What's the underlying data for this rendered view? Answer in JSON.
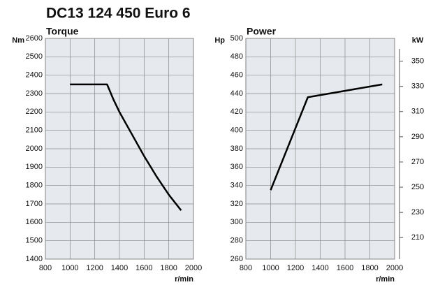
{
  "title": "DC13 124 450 Euro 6",
  "chart_data": [
    {
      "type": "line",
      "title": "Torque",
      "y_label": "Nm",
      "x_label": "r/min",
      "x": [
        1000,
        1300,
        1350,
        1400,
        1500,
        1600,
        1700,
        1800,
        1900
      ],
      "values": [
        2350,
        2350,
        2270,
        2200,
        2080,
        1960,
        1850,
        1750,
        1665
      ],
      "color": "#000000",
      "grid": true,
      "xlim": [
        800,
        2000
      ],
      "xticks": [
        800,
        1000,
        1200,
        1400,
        1600,
        1800,
        2000
      ],
      "ylim": [
        1400,
        2600
      ],
      "yticks": [
        1400,
        1500,
        1600,
        1700,
        1800,
        1900,
        2000,
        2100,
        2200,
        2300,
        2400,
        2500,
        2600
      ]
    },
    {
      "type": "line",
      "title": "Power",
      "y_label": "Hp",
      "y2_label": "kW",
      "x_label": "r/min",
      "x": [
        1000,
        1300,
        1900
      ],
      "values": [
        335,
        436,
        450
      ],
      "color": "#000000",
      "grid": true,
      "xlim": [
        800,
        2000
      ],
      "xticks": [
        800,
        1000,
        1200,
        1400,
        1600,
        1800,
        2000
      ],
      "ylim": [
        260,
        500
      ],
      "yticks": [
        260,
        280,
        300,
        320,
        340,
        360,
        380,
        400,
        420,
        440,
        460,
        480,
        500
      ],
      "y2lim": [
        193,
        368
      ],
      "y2ticks": [
        210,
        230,
        250,
        270,
        290,
        310,
        330,
        350
      ]
    }
  ]
}
